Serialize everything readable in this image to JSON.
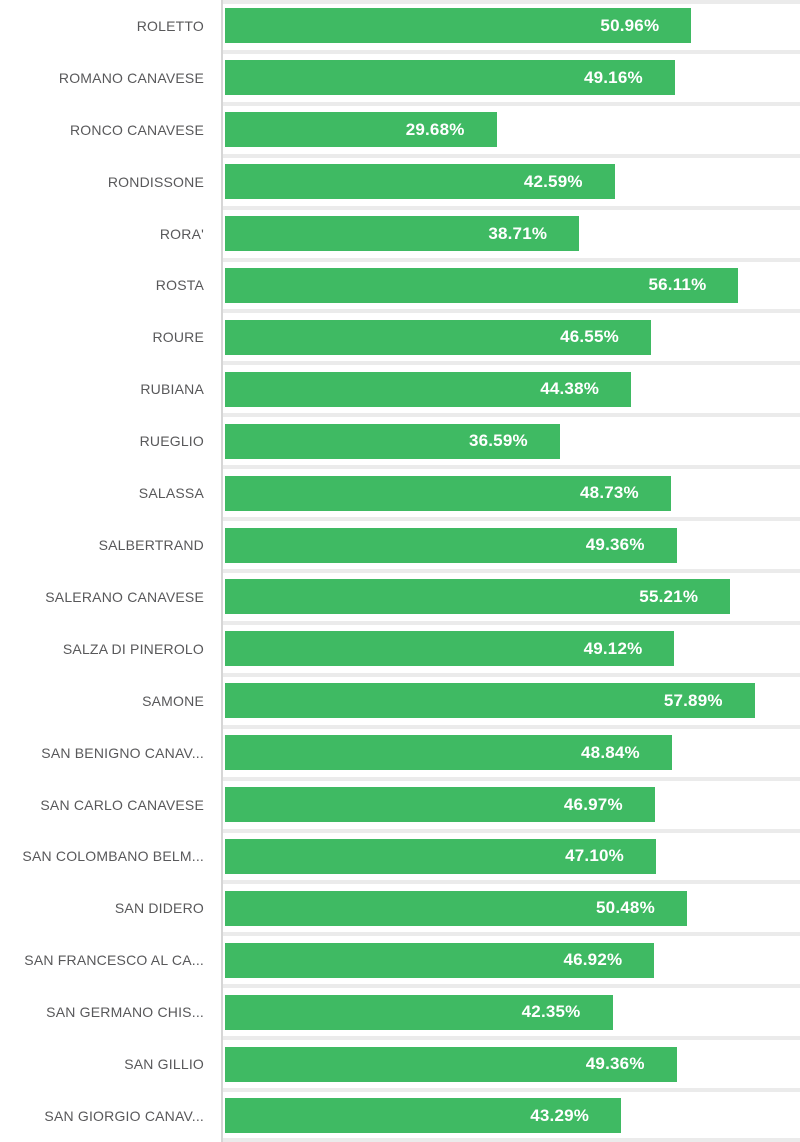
{
  "chart_data": {
    "type": "bar",
    "orientation": "horizontal",
    "title": "",
    "xlabel": "",
    "ylabel": "",
    "xlim": [
      0,
      62.7
    ],
    "grid": "row-separators-only",
    "legend": "none",
    "categories": [
      "ROLETTO",
      "ROMANO CANAVESE",
      "RONCO CANAVESE",
      "RONDISSONE",
      "RORA'",
      "ROSTA",
      "ROURE",
      "RUBIANA",
      "RUEGLIO",
      "SALASSA",
      "SALBERTRAND",
      "SALERANO CANAVESE",
      "SALZA DI PINEROLO",
      "SAMONE",
      "SAN BENIGNO CANAV...",
      "SAN CARLO CANAVESE",
      "SAN COLOMBANO BELM...",
      "SAN DIDERO",
      "SAN FRANCESCO AL CA...",
      "SAN GERMANO CHIS...",
      "SAN GILLIO",
      "SAN GIORGIO CANAV..."
    ],
    "values": [
      50.96,
      49.16,
      29.68,
      42.59,
      38.71,
      56.11,
      46.55,
      44.38,
      36.59,
      48.73,
      49.36,
      55.21,
      49.12,
      57.89,
      48.84,
      46.97,
      47.1,
      50.48,
      46.92,
      42.35,
      49.36,
      43.29
    ],
    "value_labels": [
      "50.96%",
      "49.16%",
      "29.68%",
      "42.59%",
      "38.71%",
      "56.11%",
      "46.55%",
      "44.38%",
      "36.59%",
      "48.73%",
      "49.36%",
      "55.21%",
      "49.12%",
      "57.89%",
      "48.84%",
      "46.97%",
      "47.10%",
      "50.48%",
      "46.92%",
      "42.35%",
      "49.36%",
      "43.29%"
    ],
    "colors": {
      "bar": "#3fba63",
      "category_label_text": "#58585a",
      "value_label_text": "#ffffff",
      "axis_line": "#d6d6d6",
      "row_separator": "#ebebeb",
      "background": "#ffffff"
    }
  }
}
